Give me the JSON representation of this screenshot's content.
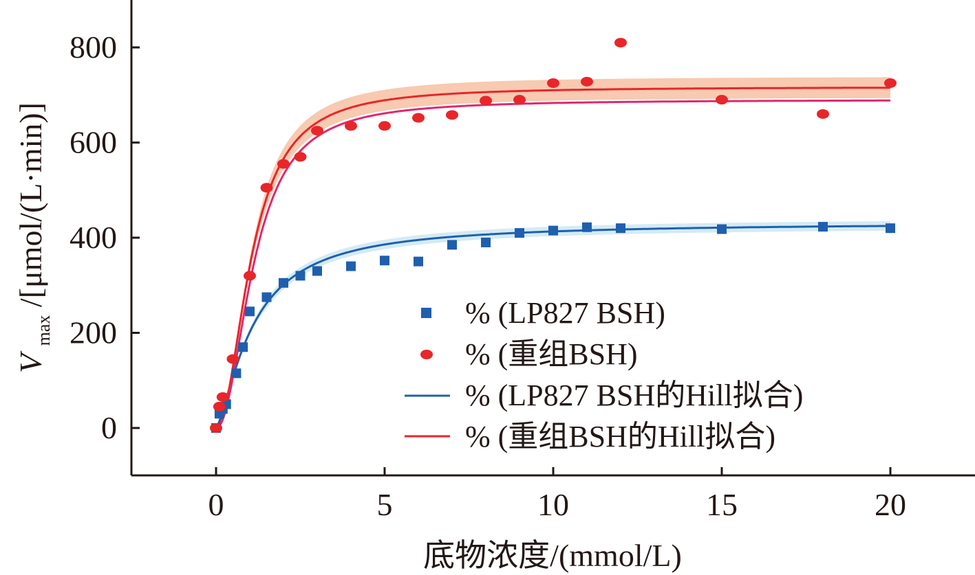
{
  "chart_data": {
    "type": "scatter",
    "xlabel": "底物浓度/(mmol/L)",
    "ylabel": {
      "symbol": "V",
      "subscript": "max",
      "unit": "/[μmol/(L·min)]"
    },
    "xlim": [
      -2.5,
      22.5
    ],
    "ylim": [
      -100,
      900
    ],
    "xticks": [
      0,
      5,
      10,
      15,
      20
    ],
    "yticks": [
      0,
      200,
      400,
      600,
      800
    ],
    "legend_position": "right-middle",
    "colors": {
      "blue": "#1f5fae",
      "blue_band": "#cde8f2",
      "red": "#e8262a",
      "red_band": "#f6c1a3",
      "magenta": "#e0286e",
      "axis": "#231815"
    },
    "series": [
      {
        "name": "% (LP827 BSH)",
        "kind": "points",
        "marker": "square",
        "color": "#1f5fae",
        "x": [
          0,
          0.1,
          0.2,
          0.3,
          0.6,
          0.8,
          1.0,
          1.5,
          2.0,
          2.5,
          3.0,
          4.0,
          5.0,
          6.0,
          7.0,
          8.0,
          9.0,
          10.0,
          11.0,
          12.0,
          15.0,
          18.0,
          20.0
        ],
        "y": [
          0,
          30,
          40,
          50,
          115,
          170,
          245,
          275,
          305,
          320,
          330,
          340,
          352,
          350,
          385,
          390,
          410,
          415,
          422,
          420,
          418,
          423,
          420
        ]
      },
      {
        "name": "% (重组BSH)",
        "kind": "points",
        "marker": "circle",
        "color": "#e8262a",
        "x": [
          0,
          0.1,
          0.2,
          0.5,
          1.0,
          1.5,
          2.0,
          2.5,
          3.0,
          4.0,
          5.0,
          6.0,
          7.0,
          8.0,
          9.0,
          10.0,
          11.0,
          12.0,
          15.0,
          18.0,
          20.0
        ],
        "y": [
          0,
          45,
          65,
          145,
          320,
          505,
          555,
          570,
          625,
          635,
          635,
          652,
          658,
          688,
          690,
          725,
          728,
          810,
          690,
          660,
          725
        ]
      },
      {
        "name": "% (LP827 BSH的Hill拟合)",
        "kind": "line",
        "color": "#1f5fae",
        "hill": {
          "vmax": 432,
          "k": 1.1,
          "n": 1.4
        },
        "band": 10
      },
      {
        "name": "% (重组BSH的Hill拟合)",
        "kind": "line",
        "color": "#e8262a",
        "hill": {
          "vmax": 717,
          "k": 1.05,
          "n": 2.05
        },
        "band": 22
      },
      {
        "kind": "line",
        "color": "#e0286e",
        "hill": {
          "vmax": 690,
          "k": 1.12,
          "n": 2.1
        }
      }
    ]
  }
}
